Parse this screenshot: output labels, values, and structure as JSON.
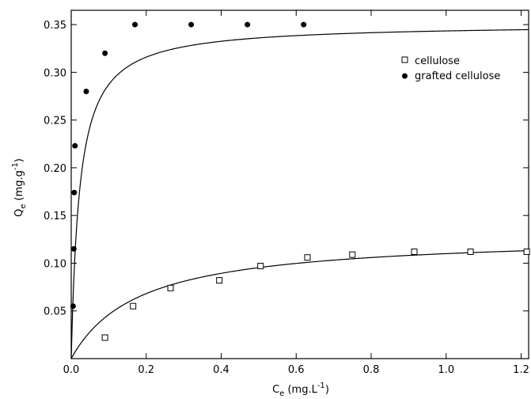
{
  "chart_data": {
    "type": "scatter",
    "title": "",
    "xlabel": "Ce (mg.L-1)",
    "ylabel": "Qe (mg.g-1)",
    "xlabel_parts": {
      "sym": "C",
      "sub": "e",
      "rest": " (mg.L",
      "sup": "-1",
      "close": ")"
    },
    "ylabel_parts": {
      "sym": "Q",
      "sub": "e",
      "rest": " (mg.g",
      "sup": "-1",
      "close": ")"
    },
    "xlim": [
      0.0,
      1.22
    ],
    "ylim": [
      0.0,
      0.365
    ],
    "x_ticks": [
      0.0,
      0.2,
      0.4,
      0.6,
      0.8,
      1.0,
      1.2
    ],
    "x_tick_labels": [
      "0.0",
      "0.2",
      "0.4",
      "0.6",
      "0.8",
      "1.0",
      "1.2"
    ],
    "y_ticks": [
      0.05,
      0.1,
      0.15,
      0.2,
      0.25,
      0.3,
      0.35
    ],
    "y_tick_labels": [
      "0.05",
      "0.10",
      "0.15",
      "0.20",
      "0.25",
      "0.30",
      "0.35"
    ],
    "grid": false,
    "legend_position": "top-right",
    "series": [
      {
        "name": "cellulose",
        "marker": "open-square",
        "color": "#000000",
        "x": [
          0.09,
          0.165,
          0.265,
          0.395,
          0.505,
          0.63,
          0.75,
          0.915,
          1.065,
          1.215
        ],
        "y": [
          0.022,
          0.055,
          0.074,
          0.082,
          0.097,
          0.106,
          0.109,
          0.112,
          0.112,
          0.112
        ],
        "fit_curve": "langmuir",
        "fit_params": {
          "qmax": 0.13,
          "k": 5.5
        }
      },
      {
        "name": "grafted cellulose",
        "marker": "filled-circle",
        "color": "#000000",
        "x": [
          0.005,
          0.007,
          0.008,
          0.01,
          0.04,
          0.09,
          0.17,
          0.32,
          0.47,
          0.62
        ],
        "y": [
          0.055,
          0.115,
          0.174,
          0.223,
          0.28,
          0.32,
          0.35,
          0.35,
          0.35,
          0.35
        ],
        "fit_curve": "langmuir",
        "fit_params": {
          "qmax": 0.351,
          "k": 45
        }
      }
    ]
  }
}
